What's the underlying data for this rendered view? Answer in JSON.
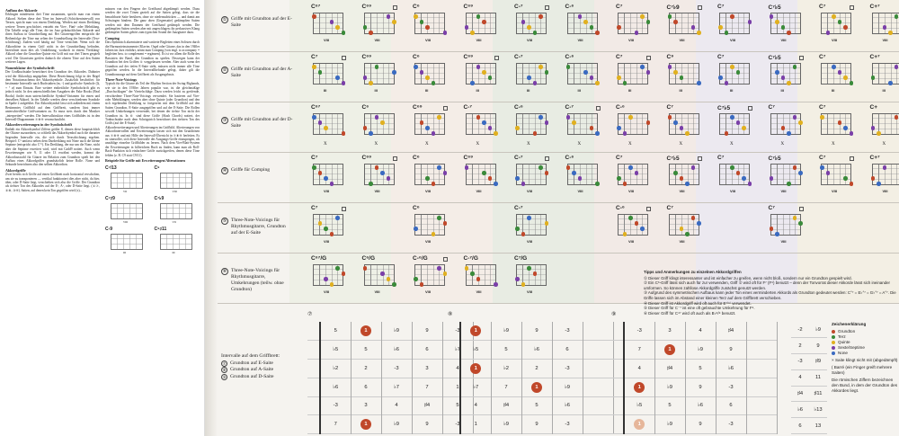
{
  "left_page": {
    "col1": [
      {
        "h": "Aufbau der Akkorde",
        "t": "Erklingen mindestens drei Töne zusammen, spricht man von einem Akkord. Stehen diese drei Töne im Intervall (Schichtenintervall) von Terzen, spricht man von einem Dreiklang. Werden auf einen Dreiklang weitere Terzen geschichtet, entsteht ein Vier-, Fünf- oder Mehrklang. Die Tabelle zeigt alle Töne, die im Jazz gebräuchlichen Akkorde und ihren Aufbau in Grundstellung auf. Bei Gitarrengriffen entspricht die Reihenfolge der Töne nur selten der Grundstellung der Intervalle (Terz-schichtung). Zudem wird häufig auf Töne verzichtet. Wenn sich die Akkordtöne in einem Griff nicht in der Grundstellung befinden, bezeichnet man dies als Umkehrung, wodurch in einem Vierklang-Akkord ohne die Grundton-Quinte ein Griff mit nur drei Tönen gespielt wird. Die Gitarristen greifen dadurch die oberen Töne auf den Saiten weiterer Lagen."
      },
      {
        "h": "Nomenklatur der Symbolschrift",
        "t": "Der Großbuchstabe bezeichnet den Grundton des Akkordes. Dahinter wird der Akkordtyp angegeben. Diese Bezeichnung folgt in der Regel dem Notationsschema der Akkordsymbole. Zusätzlich beschriftet: für bestimmte Intervalle nach Buchstaben (m, -) und grafische Symbole (Δ, + ° ø) zum Einsatz. Eine weitere einheitliche Symbolschrift gibt es jedoch nicht. In den unterschiedlichen Ausgaben der Fake Books (Real Books) findet man unterschiedliche Symbol-Varianten für einen und denselben Akkord. In der Tabelle werden diese verschiedenen Symbole in Spalte 2 aufgeführt. Ein Akkordsymbol lässt sich außerdem mit einem Bestimmtes Griffbild auf dem Griffbrett, sondern lässt immer unterschiedliche Griffvarianten zu. Es muss stets durch den Musiker „interpretiert\" werden. Die Intervallstruktur eines Griffbildes ist in den Intervall-Diagrammen ⑦⑧⑨ veranschaulicht."
      },
      {
        "h": "Akkorderweiterungen in der Symbolschrift",
        "t": "Enthält ein Akkordsymbol Ziffern größer 8, dienen diese hauptsächlich der Oktave zuzuordnen, so schließt das Akkordsymbol auch die darunter liegenden Intervalle ein, die sich durch Terzschichtung ergeben. Beispiel: C⁹ umfasst neben dem Durdreiklang mit None auch die kleine Septime (entspricht also C⁷⁹). Ein Dreiklang, der nur um die None, nicht aber die Septime erweitert wird, wird mit Cadd9 notiert. Auch wenn Erweiterungen wie 9, 11 oder 13 erwähnt werden, kommt die Akkordauswahl für Gitarre im Relation zum Grundton spielt bei den Aufbau eines Akkordgriffes grundsätzlich keine Rolle. None und Sekunde bezeichnen also den selben Akkordton."
      }
    ],
    "col2": [
      {
        "h": "",
        "t": "müssen von den Fingern der Greifhand abgedämpft werden. Dazu werden die zwei Tönen gezielt auf die Saiten gelegt, dass sie die benachbarte Saite berühren, ohne sie niederzudrücken — und damit am Schwingen hindern. Die ganz oben (Gegensaite) gedämpften Saiten werden mit dem Daumen der Greifhand gedämpft werden. Die gedämpften Saiten werden aber mit angeschlagen; ihr perkussives Klang gedämpfter Saiten gehört zum typischen Sound der Jazzgitarre dazu."
      },
      {
        "h": "Comping",
        "t": "Das rhythmisch akzentuierte und variierte Begleiten eines Solisten durch die Harmonieinstrumente (Klavier, Orgel oder Gitarre, das in den 1940er Jahren im Jazz einführt, nennt man Comping (von engl. to accompany = begleiten bzw. to complement = ergänzen). Es ist vor allem die Rolle des Bassisten der Band, den Grundton zu spielen. Deswegen kann der Grundton bei den Griffen ⑤ weggelassen werden. Aber auch wenn der Grundton auf der tiefen E-Saite steht, müssen nicht immer alle Töne gegriffen werden. In die Intervallbefunde gelegt, daher gilt die Grundtonsunge auf dem Griffbrett als Ausgangsbasis."
      },
      {
        "h": "Three-Note-Voicings",
        "t": "Typisch für die Gitarre als Teil der Rhythm Section der Swing-Bigbands, wie sie in den 1930er Jahren populär war, ist die gleichmäßige „Durchschlagen\" der Viertelschläge. Dazu werden leicht zu greifende, verschiedene Three-Note-Voicings verwendet. Sie basieren auf Vier- oder Mehrklängen, werden aber ohne Quinte (oder Grundton) und den sich ergebenden Dreiklang so fortgesetzt mit dem Griffbild auf den Saiten Grundton, E-Saite ausgegriffen und auf der E-Saite. Die Rollen sowohl Umkehrungen verwendet, bei denen der tiefste Ton nicht der Grundton ist. In ⑥ sind diese Griffe (Slash Chords) notiert, der Tonbuchstabe nach dem Schrägstrich bezeichnet den tiefsten Ton des Griffs (auf der E-Saite)."
      },
      {
        "h": "",
        "t": "Akkorderweiterungen und Alterierungen im Griffbild. Alterierungen von Akkordintervallen und Erweiterungen lassen sich mit den Grundtönen aus ⑦⑧⑨ und mit Hilfe der Intervall-Übersicht in ⑦⑧⑨ herleiten. Es ist sinnvoller, sich diese Intervalle der Ausgangs-Griffe einzuprägen, als unzählige einzelne Griffbilder zu lernen. Nach dem Vier-Blatt-System der Erweiterungen in hilfreichem Buch zu finden, kann man als Roll-Back-Funktion sich einfachere Griffe zurückgreifen, denen diese Töne fehlen (z. B. C9 statt C9/11)."
      },
      {
        "h": "Beispiele für Griffe mit Erweiterungen/Alterationen",
        "t": ""
      }
    ],
    "mini_diagrams": [
      {
        "name": "C⁷/13",
        "fret": "VII"
      },
      {
        "name": "C⁹",
        "fret": "VIII"
      },
      {
        "name": "C⁷♯9",
        "fret": "VIII"
      },
      {
        "name": "C⁷♭9",
        "fret": "VII"
      },
      {
        "name": "C-9",
        "fret": "III"
      },
      {
        "name": "C⁹♯11",
        "fret": "III"
      }
    ],
    "col1_tail": {
      "h": "Akkordgriffe",
      "t": "Zwei bereits sich Griffe auf einen Griffbrett nach horizontal verschoben, um sie zu transponieren — vertikal funktioniert dies aber nicht, da hier, über, oder D-Saite liegt, verschieben sich also die Griffe. Der Grundton als tiefster Ton des Akkordes auf der E-, A-, oder D-Saite liegt. (①⑦, ②⑧, ③⑨). Saiten, auf denen kein Ton gegriffen wird (x)..."
    }
  },
  "rows": [
    {
      "num": "①",
      "label": "Griffe mit Grundton auf der E-Saite"
    },
    {
      "num": "②",
      "label": "Griffe mit Grundton auf der A-Saite"
    },
    {
      "num": "③",
      "label": "Griffe mit Grundton auf der D-Saite"
    },
    {
      "num": "④",
      "label": "Griffe für Comping"
    },
    {
      "num": "⑤",
      "label": "Three-Note-Voicings für Rhythmusgitarre, Grundton auf der E-Saite"
    },
    {
      "num": "⑥",
      "label": "Three-Note-Voicings für Rhythmusgitarre, Umkehrungen (teilw. ohne Grundton)"
    }
  ],
  "chord_names": [
    [
      "C⁶⁷",
      "C⁶⁹",
      "C⁶",
      "C⁶⁹",
      "C-⁷",
      "C-⁶",
      "C⁷",
      "C⁷♭9",
      "C⁷",
      "C⁷♭5",
      "C⁷",
      "C+⁷"
    ],
    [
      "C⁷",
      "C⁶⁹",
      "C⁶",
      "C⁶⁹",
      "C-⁷",
      "C-⁶",
      "C⁷",
      "C⁹",
      "C⁷",
      "C⁷♭5",
      "C⁷",
      "C+⁷"
    ],
    [
      "C⁶⁷",
      "C⁶",
      "C⁶⁹",
      "C-⁷",
      "C-⁶",
      "C-⁷",
      "C-⁶",
      "C⁷",
      "C⁷♭5",
      "C⁷",
      "C⁷",
      "C+"
    ],
    [
      "C⁷",
      "C⁶⁹",
      "C⁶",
      "C⁶⁹",
      "C-⁷",
      "C-⁶",
      "C⁷",
      "C⁷♭5",
      "C⁷",
      "C⁷♭5",
      "C⁷",
      "C+⁷"
    ],
    [
      "C⁷",
      "",
      "C⁶",
      "",
      "C-⁷",
      "",
      "C-⁶",
      "C⁷",
      "",
      "C⁷",
      "",
      ""
    ],
    [
      "C⁶⁷/G",
      "C⁶/G",
      "C-⁶/G",
      "C-⁷/G",
      "C⁷/G",
      "",
      "",
      "",
      "",
      "",
      "",
      ""
    ]
  ],
  "fret_labels": [
    [
      "VIII",
      "VIII",
      "VIII",
      "VIII",
      "VIII",
      "VIII",
      "VIII",
      "VIII",
      "VIII",
      "VIII",
      "VIII",
      "VIII"
    ],
    [
      "III",
      "III",
      "III",
      "III",
      "III",
      "III",
      "III",
      "III",
      "III",
      "III",
      "III",
      "III"
    ],
    [
      "X",
      "X",
      "X",
      "X",
      "X",
      "X",
      "X",
      "X",
      "X",
      "X",
      "X",
      "X"
    ],
    [
      "VIII",
      "VIII",
      "VIII",
      "VIII",
      "VIII",
      "VIII",
      "VIII",
      "VIII",
      "VIII",
      "VIII",
      "VIII",
      "VIII"
    ],
    [
      "VIII",
      "",
      "VIII",
      "",
      "VIII",
      "",
      "VIII",
      "VIII",
      "",
      "VIII",
      "",
      ""
    ],
    [
      "VIII",
      "VIII",
      "VIII",
      "VIII",
      "VIII",
      "",
      "",
      "",
      "",
      "",
      "",
      ""
    ]
  ],
  "tips": {
    "title": "Tipps und Anmerkungen zu einzelnen Akkordgriffen",
    "items": [
      "① Dieser Griff klingt interessanter und ist einfacher zu greifen, wenn nicht bloß, sondern nur ein Grundton gespielt wird.",
      "② Ein C⁶-Griff lässt sich auch für zur verwenden, Griff ② wird oft für F⁷ (F⁹) benutzt – denn der Tonvorrat dieser Akkorde lässt sich ineinander umformen. So können zahllose Akkordgriffe zunächst genutzt werden.",
      "③ Aufgrund des symmetrischen Aufbaus kann jeder Ton eines verminderten Akkords als Grundton gedeutet werden: C°⁷ = E♭°⁷ = G♭°⁷ = A°⁷. Die Griffe lassen sich im Abstand einer kleinen Terz auf dem Griffbrett verschieben.",
      "④ Dieser Griff ist Akkordgriff wird oft auch für E⁷⁽⁹⁾ verwendet.",
      "⑤ Dieser Griff für C⁻⁷ ist eine oft gebrauchte Umkehrung für F⁹.",
      "⑥ Dieser Griff für C⁴⁷ wird oft auch als B♭⁶/⁹ benutzt."
    ]
  },
  "interval_label": {
    "title": "Intervalle auf dem Griffbrett:",
    "items": [
      {
        "num": "⑦",
        "text": "Grundton auf E-Saite"
      },
      {
        "num": "⑧",
        "text": "Grundton auf A-Saite"
      },
      {
        "num": "⑨",
        "text": "Grundton auf D-Saite"
      }
    ]
  },
  "fretboards": [
    {
      "num": "⑦",
      "rows": [
        [
          "",
          "5",
          "1",
          "♭9",
          "9",
          "-3"
        ],
        [
          "",
          "♭5",
          "5",
          "♭6",
          "6",
          "♭7"
        ],
        [
          "",
          "♭2",
          "2",
          "-3",
          "3",
          "4"
        ],
        [
          "",
          "♭6",
          "6",
          "♭7",
          "7",
          "1"
        ],
        [
          "",
          "-3",
          "3",
          "4",
          "♯4",
          "5"
        ],
        [
          "",
          "7",
          "1",
          "♭9",
          "9",
          "-3"
        ]
      ],
      "roots": [
        [
          0,
          2
        ],
        [
          5,
          2
        ]
      ],
      "root_pale": []
    },
    {
      "num": "⑧",
      "rows": [
        [
          "",
          "1",
          "♭9",
          "9",
          "-3",
          ""
        ],
        [
          "",
          "♭5",
          "5",
          "♭6",
          "6",
          ""
        ],
        [
          "",
          "1",
          "♭2",
          "2",
          "-3",
          ""
        ],
        [
          "",
          "♭7",
          "7",
          "1",
          "♭9",
          ""
        ],
        [
          "",
          "4",
          "♯4",
          "5",
          "♭6",
          ""
        ],
        [
          "",
          "1",
          "♭9",
          "9",
          "-3",
          ""
        ]
      ],
      "roots": [
        [
          0,
          1
        ],
        [
          2,
          1
        ],
        [
          3,
          3
        ]
      ],
      "root_pale": []
    },
    {
      "num": "⑨",
      "rows": [
        [
          "",
          "-3",
          "3",
          "4",
          "♯4",
          ""
        ],
        [
          "",
          "7",
          "1",
          "♭9",
          "9",
          ""
        ],
        [
          "",
          "4",
          "♯4",
          "5",
          "♭6",
          ""
        ],
        [
          "",
          "1",
          "♭9",
          "9",
          "-3",
          ""
        ],
        [
          "",
          "♭5",
          "5",
          "♭6",
          "6",
          ""
        ],
        [
          "",
          "1",
          "♭9",
          "9",
          "-3",
          ""
        ]
      ],
      "roots": [
        [
          1,
          2
        ],
        [
          3,
          1
        ]
      ],
      "root_pale": [
        [
          5,
          1
        ]
      ]
    }
  ],
  "interval_column": [
    [
      "-2",
      "♭9"
    ],
    [
      "2",
      "9"
    ],
    [
      "-3",
      "♯9"
    ],
    [
      "4",
      "11"
    ],
    [
      "♯4",
      "♯11"
    ],
    [
      "♭6",
      "♭13"
    ],
    [
      "6",
      "13"
    ]
  ],
  "legend": {
    "title": "Zeichenerklärung",
    "items": [
      {
        "label": "Grundton",
        "color": "#c0482a"
      },
      {
        "label": "Terz",
        "color": "#3a8a3a"
      },
      {
        "label": "Quinte",
        "color": "#e0b020"
      },
      {
        "label": "Sexte/Septime",
        "color": "#7a3fa8"
      },
      {
        "label": "None",
        "color": "#3a6ac0"
      }
    ],
    "notes": [
      "× Saite klingt nicht mit (abgedämpft)",
      "( Barré (ein Finger greift mehrere Saiten)",
      "Die römischen Ziffern bezeichnen den Bund, in dem der Grundton des Akkordes liegt."
    ]
  },
  "band_colors": [
    "#eef0e6",
    "#f4ede7",
    "#e8ece3",
    "#f2eae6",
    "#ece9f0",
    "#f3efe4"
  ]
}
